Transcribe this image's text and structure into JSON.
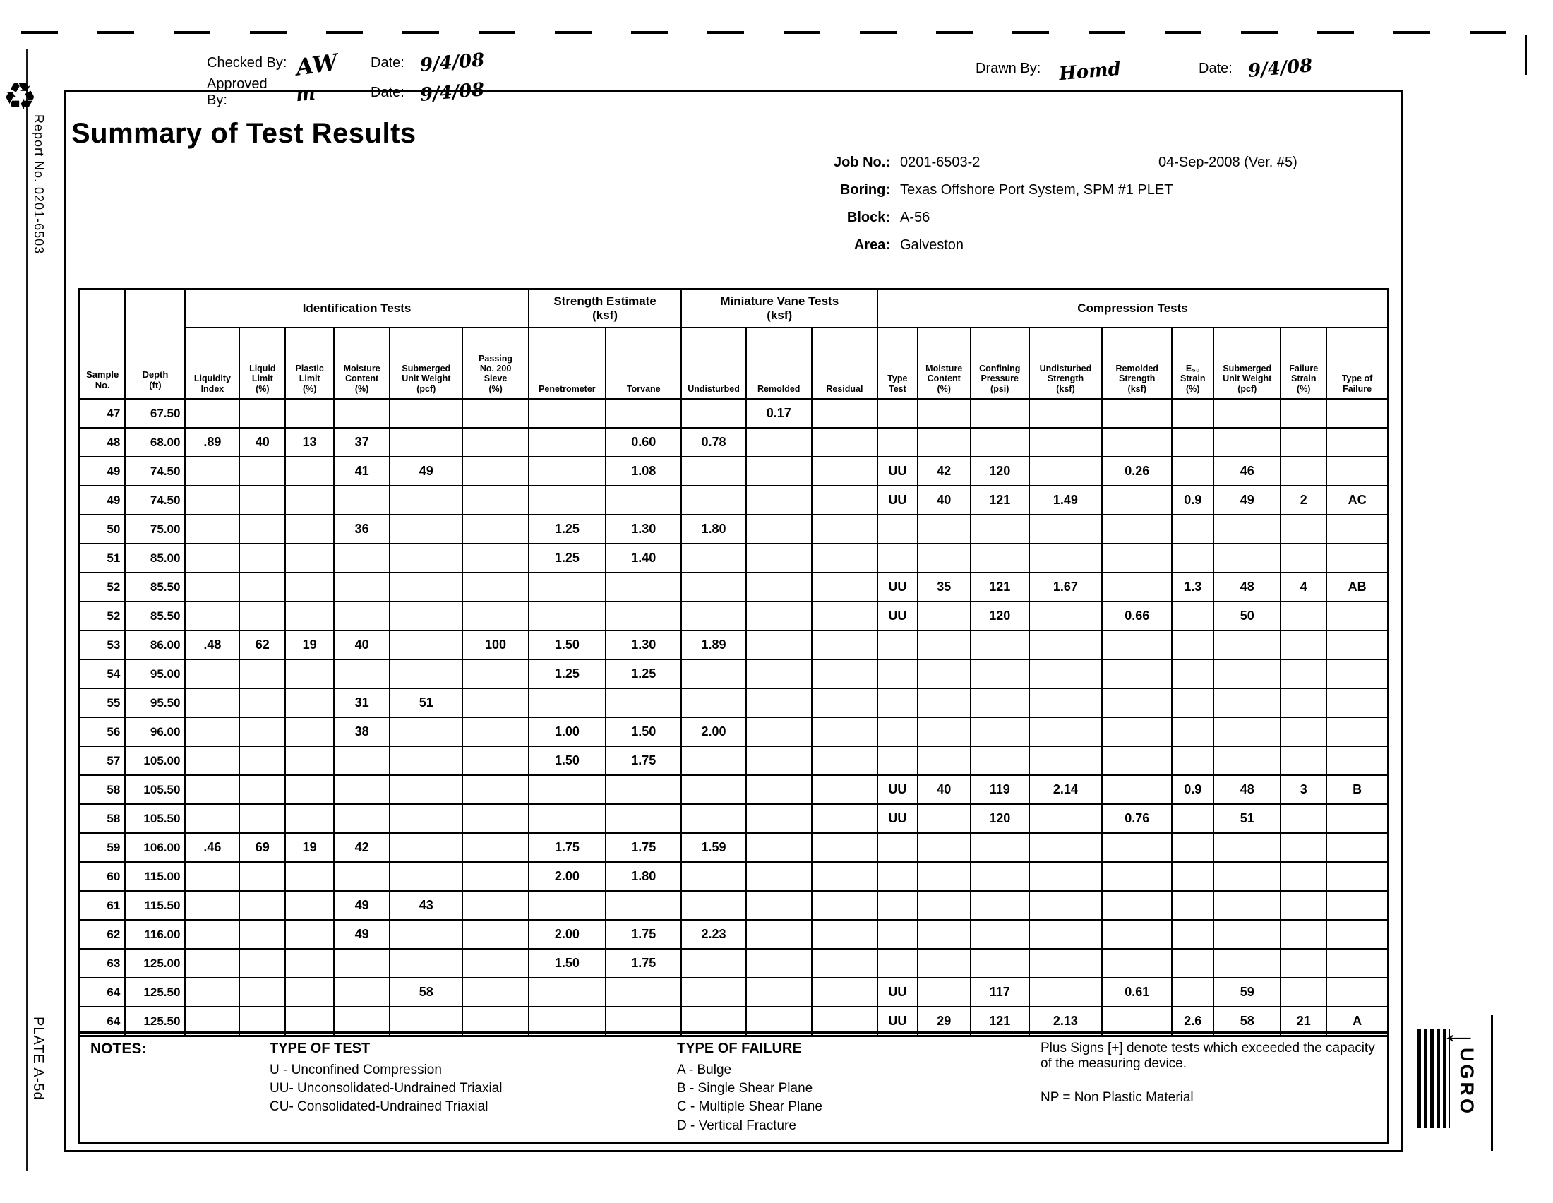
{
  "page": {
    "title": "Summary of Test Results",
    "report_no_side": "Report No. 0201-6503",
    "plate_side": "PLATE A-5d",
    "recycle_icon_char": "♻",
    "checked_by_label": "Checked By:",
    "checked_by_value": "AW",
    "checked_date_label": "Date:",
    "checked_date_value": "9/4/08",
    "approved_by_label": "Approved By:",
    "approved_by_value": "m",
    "approved_date_label": "Date:",
    "approved_date_value": "9/4/08",
    "drawn_by_label": "Drawn By:",
    "drawn_by_value": "Homd",
    "drawn_date_label": "Date:",
    "drawn_date_value": "9/4/08",
    "logo_arrow": "←",
    "logo_text": "UGRO"
  },
  "job": {
    "job_no_label": "Job No.:",
    "job_no": "0201-6503-2",
    "version_date": "04-Sep-2008  (Ver. #5)",
    "boring_label": "Boring:",
    "boring": "Texas Offshore Port System, SPM #1 PLET",
    "block_label": "Block:",
    "block": "A-56",
    "area_label": "Area:",
    "area": "Galveston"
  },
  "table": {
    "lead_columns": [
      "Sample\nNo.",
      "Depth\n(ft)"
    ],
    "groups": [
      {
        "label": "Identification Tests",
        "span": 6
      },
      {
        "label": "Strength Estimate\n(ksf)",
        "span": 2
      },
      {
        "label": "Miniature Vane Tests\n(ksf)",
        "span": 3
      },
      {
        "label": "Compression Tests",
        "span": 9
      }
    ],
    "sub_columns": [
      "Liquidity\nIndex",
      "Liquid\nLimit\n(%)",
      "Plastic\nLimit\n(%)",
      "Moisture\nContent\n(%)",
      "Submerged\nUnit Weight\n(pcf)",
      "Passing\nNo. 200\nSieve\n(%)",
      "Penetrometer",
      "Torvane",
      "Undisturbed",
      "Remolded",
      "Residual",
      "Type\nTest",
      "Moisture\nContent\n(%)",
      "Confining\nPressure\n(psi)",
      "Undisturbed\nStrength\n(ksf)",
      "Remolded\nStrength\n(ksf)",
      "E₅₀\nStrain\n(%)",
      "Submerged\nUnit Weight\n(pcf)",
      "Failure\nStrain\n(%)",
      "Type of\nFailure"
    ],
    "rows": [
      [
        "47",
        "67.50",
        "",
        "",
        "",
        "",
        "",
        "",
        "",
        "",
        "",
        "0.17",
        "",
        "",
        "",
        "",
        "",
        "",
        "",
        "",
        "",
        ""
      ],
      [
        "48",
        "68.00",
        ".89",
        "40",
        "13",
        "37",
        "",
        "",
        "",
        "0.60",
        "0.78",
        "",
        "",
        "",
        "",
        "",
        "",
        "",
        "",
        "",
        "",
        ""
      ],
      [
        "49",
        "74.50",
        "",
        "",
        "",
        "41",
        "49",
        "",
        "",
        "1.08",
        "",
        "",
        "",
        "UU",
        "42",
        "120",
        "",
        "0.26",
        "",
        "46",
        "",
        ""
      ],
      [
        "49",
        "74.50",
        "",
        "",
        "",
        "",
        "",
        "",
        "",
        "",
        "",
        "",
        "",
        "UU",
        "40",
        "121",
        "1.49",
        "",
        "0.9",
        "49",
        "2",
        "AC"
      ],
      [
        "50",
        "75.00",
        "",
        "",
        "",
        "36",
        "",
        "",
        "1.25",
        "1.30",
        "1.80",
        "",
        "",
        "",
        "",
        "",
        "",
        "",
        "",
        "",
        "",
        ""
      ],
      [
        "51",
        "85.00",
        "",
        "",
        "",
        "",
        "",
        "",
        "1.25",
        "1.40",
        "",
        "",
        "",
        "",
        "",
        "",
        "",
        "",
        "",
        "",
        "",
        ""
      ],
      [
        "52",
        "85.50",
        "",
        "",
        "",
        "",
        "",
        "",
        "",
        "",
        "",
        "",
        "",
        "UU",
        "35",
        "121",
        "1.67",
        "",
        "1.3",
        "48",
        "4",
        "AB"
      ],
      [
        "52",
        "85.50",
        "",
        "",
        "",
        "",
        "",
        "",
        "",
        "",
        "",
        "",
        "",
        "UU",
        "",
        "120",
        "",
        "0.66",
        "",
        "50",
        "",
        ""
      ],
      [
        "53",
        "86.00",
        ".48",
        "62",
        "19",
        "40",
        "",
        "100",
        "1.50",
        "1.30",
        "1.89",
        "",
        "",
        "",
        "",
        "",
        "",
        "",
        "",
        "",
        "",
        ""
      ],
      [
        "54",
        "95.00",
        "",
        "",
        "",
        "",
        "",
        "",
        "1.25",
        "1.25",
        "",
        "",
        "",
        "",
        "",
        "",
        "",
        "",
        "",
        "",
        "",
        ""
      ],
      [
        "55",
        "95.50",
        "",
        "",
        "",
        "31",
        "51",
        "",
        "",
        "",
        "",
        "",
        "",
        "",
        "",
        "",
        "",
        "",
        "",
        "",
        "",
        ""
      ],
      [
        "56",
        "96.00",
        "",
        "",
        "",
        "38",
        "",
        "",
        "1.00",
        "1.50",
        "2.00",
        "",
        "",
        "",
        "",
        "",
        "",
        "",
        "",
        "",
        "",
        ""
      ],
      [
        "57",
        "105.00",
        "",
        "",
        "",
        "",
        "",
        "",
        "1.50",
        "1.75",
        "",
        "",
        "",
        "",
        "",
        "",
        "",
        "",
        "",
        "",
        "",
        ""
      ],
      [
        "58",
        "105.50",
        "",
        "",
        "",
        "",
        "",
        "",
        "",
        "",
        "",
        "",
        "",
        "UU",
        "40",
        "119",
        "2.14",
        "",
        "0.9",
        "48",
        "3",
        "B"
      ],
      [
        "58",
        "105.50",
        "",
        "",
        "",
        "",
        "",
        "",
        "",
        "",
        "",
        "",
        "",
        "UU",
        "",
        "120",
        "",
        "0.76",
        "",
        "51",
        "",
        ""
      ],
      [
        "59",
        "106.00",
        ".46",
        "69",
        "19",
        "42",
        "",
        "",
        "1.75",
        "1.75",
        "1.59",
        "",
        "",
        "",
        "",
        "",
        "",
        "",
        "",
        "",
        "",
        ""
      ],
      [
        "60",
        "115.00",
        "",
        "",
        "",
        "",
        "",
        "",
        "2.00",
        "1.80",
        "",
        "",
        "",
        "",
        "",
        "",
        "",
        "",
        "",
        "",
        "",
        ""
      ],
      [
        "61",
        "115.50",
        "",
        "",
        "",
        "49",
        "43",
        "",
        "",
        "",
        "",
        "",
        "",
        "",
        "",
        "",
        "",
        "",
        "",
        "",
        "",
        ""
      ],
      [
        "62",
        "116.00",
        "",
        "",
        "",
        "49",
        "",
        "",
        "2.00",
        "1.75",
        "2.23",
        "",
        "",
        "",
        "",
        "",
        "",
        "",
        "",
        "",
        "",
        ""
      ],
      [
        "63",
        "125.00",
        "",
        "",
        "",
        "",
        "",
        "",
        "1.50",
        "1.75",
        "",
        "",
        "",
        "",
        "",
        "",
        "",
        "",
        "",
        "",
        "",
        ""
      ],
      [
        "64",
        "125.50",
        "",
        "",
        "",
        "",
        "58",
        "",
        "",
        "",
        "",
        "",
        "",
        "UU",
        "",
        "117",
        "",
        "0.61",
        "",
        "59",
        "",
        ""
      ],
      [
        "64",
        "125.50",
        "",
        "",
        "",
        "",
        "",
        "",
        "",
        "",
        "",
        "",
        "",
        "UU",
        "29",
        "121",
        "2.13",
        "",
        "2.6",
        "58",
        "21",
        "A"
      ]
    ]
  },
  "notes": {
    "notes_label": "NOTES:",
    "type_of_test_title": "TYPE OF TEST",
    "type_of_test_items": [
      "U  - Unconfined Compression",
      "UU- Unconsolidated-Undrained Triaxial",
      "CU- Consolidated-Undrained Triaxial"
    ],
    "type_of_failure_title": "TYPE OF FAILURE",
    "type_of_failure_items": [
      "A - Bulge",
      "B - Single Shear Plane",
      "C - Multiple Shear Plane",
      "D - Vertical Fracture"
    ],
    "plus_note": "Plus Signs [+] denote tests which exceeded the capacity of the measuring device.",
    "np_note": "NP = Non Plastic Material"
  }
}
